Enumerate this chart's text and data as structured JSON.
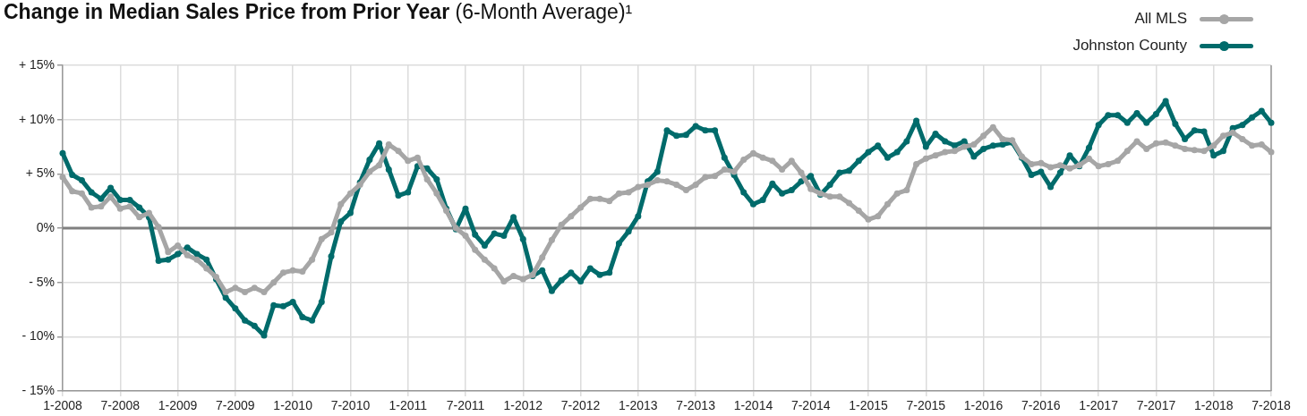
{
  "chart_data": {
    "type": "line",
    "title": "Change in Median Sales Price from Prior Year",
    "subtitle": "(6-Month Average)¹",
    "categories": [
      "1-2008",
      null,
      null,
      null,
      null,
      null,
      "7-2008",
      null,
      null,
      null,
      null,
      null,
      "1-2009",
      null,
      null,
      null,
      null,
      null,
      "7-2009",
      null,
      null,
      null,
      null,
      null,
      "1-2010",
      null,
      null,
      null,
      null,
      null,
      "7-2010",
      null,
      null,
      null,
      null,
      null,
      "1-2011",
      null,
      null,
      null,
      null,
      null,
      "7-2011",
      null,
      null,
      null,
      null,
      null,
      "1-2012",
      null,
      null,
      null,
      null,
      null,
      "7-2012",
      null,
      null,
      null,
      null,
      null,
      "1-2013",
      null,
      null,
      null,
      null,
      null,
      "7-2013",
      null,
      null,
      null,
      null,
      null,
      "1-2014",
      null,
      null,
      null,
      null,
      null,
      "7-2014",
      null,
      null,
      null,
      null,
      null,
      "1-2015",
      null,
      null,
      null,
      null,
      null,
      "7-2015",
      null,
      null,
      null,
      null,
      null,
      "1-2016",
      null,
      null,
      null,
      null,
      null,
      "7-2016",
      null,
      null,
      null,
      null,
      null,
      "1-2017",
      null,
      null,
      null,
      null,
      null,
      "7-2017",
      null,
      null,
      null,
      null,
      null,
      "1-2018",
      null,
      null,
      null,
      null,
      null,
      "7-2018"
    ],
    "series": [
      {
        "name": "All MLS",
        "color": "#a6a6a6",
        "values": [
          4.7,
          3.4,
          3.2,
          1.9,
          2.0,
          2.9,
          1.8,
          2.0,
          1.0,
          1.4,
          0.1,
          -2.2,
          -1.6,
          -2.5,
          -2.9,
          -3.7,
          -4.5,
          -5.9,
          -5.5,
          -5.9,
          -5.5,
          -5.9,
          -5.0,
          -4.1,
          -3.9,
          -4.0,
          -2.9,
          -1.0,
          -0.4,
          2.2,
          3.2,
          4.0,
          5.2,
          5.8,
          7.7,
          7.1,
          6.2,
          6.5,
          4.5,
          3.2,
          1.6,
          0.0,
          -0.7,
          -2.0,
          -2.9,
          -3.7,
          -4.9,
          -4.4,
          -4.7,
          -4.3,
          -2.7,
          -1.1,
          0.3,
          1.1,
          1.9,
          2.7,
          2.7,
          2.5,
          3.2,
          3.3,
          3.8,
          4.0,
          4.4,
          4.3,
          4.0,
          3.5,
          4.0,
          4.7,
          4.8,
          5.4,
          5.2,
          6.3,
          6.9,
          6.5,
          6.2,
          5.4,
          6.2,
          5.1,
          3.6,
          3.2,
          2.9,
          2.9,
          2.3,
          1.6,
          0.8,
          1.1,
          2.2,
          3.2,
          3.5,
          5.9,
          6.4,
          6.7,
          7.0,
          7.1,
          7.5,
          7.7,
          8.5,
          9.3,
          8.2,
          8.1,
          6.6,
          5.9,
          6.0,
          5.6,
          5.8,
          5.5,
          5.8,
          6.4,
          5.7,
          5.9,
          6.2,
          7.1,
          8.0,
          7.3,
          7.8,
          7.9,
          7.6,
          7.3,
          7.2,
          7.1,
          7.6,
          8.5,
          8.8,
          8.2,
          7.6,
          7.7,
          7.0
        ]
      },
      {
        "name": "Johnston County",
        "color": "#006b6b",
        "values": [
          6.9,
          4.9,
          4.4,
          3.3,
          2.7,
          3.7,
          2.6,
          2.6,
          1.9,
          1.0,
          -3.0,
          -2.9,
          -2.4,
          -1.8,
          -2.4,
          -2.9,
          -4.7,
          -6.4,
          -7.4,
          -8.5,
          -9.0,
          -9.9,
          -7.1,
          -7.2,
          -6.8,
          -8.2,
          -8.5,
          -6.8,
          -2.6,
          0.6,
          1.4,
          4.2,
          6.3,
          7.8,
          5.4,
          3.0,
          3.3,
          5.7,
          5.5,
          4.5,
          1.8,
          -0.1,
          1.8,
          -0.6,
          -1.6,
          -0.5,
          -0.7,
          1.0,
          -1.0,
          -4.4,
          -3.9,
          -5.8,
          -4.8,
          -4.1,
          -4.9,
          -3.7,
          -4.3,
          -4.1,
          -1.4,
          -0.3,
          1.1,
          4.3,
          5.2,
          9.0,
          8.5,
          8.6,
          9.4,
          9.0,
          9.0,
          6.5,
          4.9,
          3.3,
          2.2,
          2.6,
          4.1,
          3.2,
          3.5,
          4.3,
          4.8,
          3.1,
          4.0,
          5.1,
          5.3,
          6.2,
          7.0,
          7.6,
          6.5,
          7.0,
          8.0,
          9.9,
          7.5,
          8.7,
          8.0,
          7.6,
          8.0,
          6.6,
          7.3,
          7.6,
          7.7,
          7.9,
          6.5,
          4.9,
          5.2,
          3.8,
          5.1,
          6.7,
          5.7,
          7.4,
          9.5,
          10.4,
          10.4,
          9.7,
          10.6,
          9.7,
          10.5,
          11.7,
          9.6,
          8.2,
          9.0,
          8.9,
          6.7,
          7.1,
          9.2,
          9.5,
          10.2,
          10.8,
          9.7
        ]
      }
    ],
    "ylim": [
      -15,
      15
    ],
    "yticks": [
      {
        "value": -15,
        "label": "- 15%"
      },
      {
        "value": -10,
        "label": "- 10%"
      },
      {
        "value": -5,
        "label": "- 5%"
      },
      {
        "value": 0,
        "label": "0%"
      },
      {
        "value": 5,
        "label": "+ 5%"
      },
      {
        "value": 10,
        "label": "+ 10%"
      },
      {
        "value": 15,
        "label": "+ 15%"
      }
    ],
    "ref_lines": [
      {
        "axis": "y",
        "value": 0,
        "color": "#808080"
      }
    ],
    "grid": true,
    "legend": "top right",
    "marker": "circle",
    "line_style": "solid"
  }
}
